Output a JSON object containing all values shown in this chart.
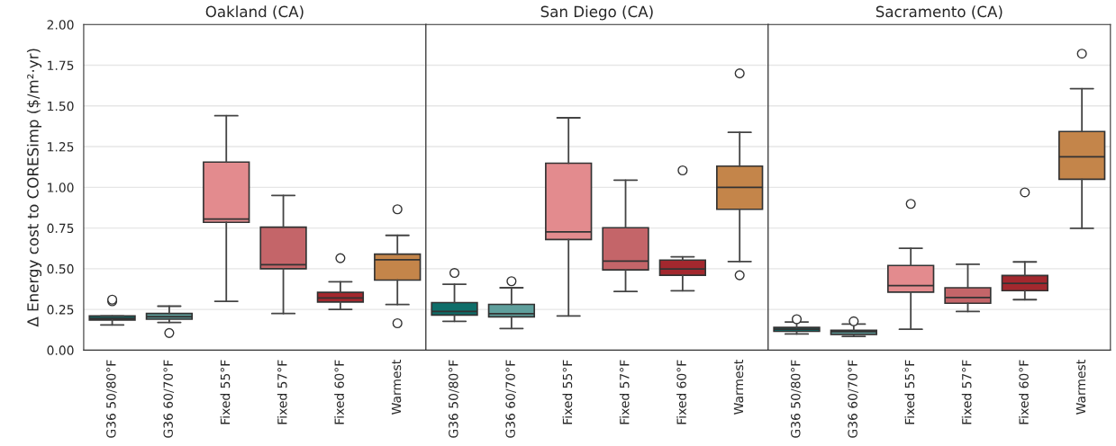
{
  "chart_data": [
    {
      "type": "box",
      "title": "Oakland (CA)",
      "ylabel": "Δ Energy cost to CORESimp ($/m²·yr)",
      "categories": [
        "G36 50/80°F",
        "G36 60/70°F",
        "Fixed 55°F",
        "Fixed 57°F",
        "Fixed 60°F",
        "Warmest"
      ],
      "colors": [
        "#0e6e6a",
        "#5f9f9c",
        "#e38b8e",
        "#c46569",
        "#a3282e",
        "#c4854a"
      ],
      "ylim": [
        0,
        2
      ],
      "yticks": [
        {
          "value": 0,
          "label": "0.00"
        },
        {
          "value": 0.25,
          "label": "0.25"
        },
        {
          "value": 0.5,
          "label": "0.50"
        },
        {
          "value": 0.75,
          "label": "0.75"
        },
        {
          "value": 1,
          "label": "1.00"
        },
        {
          "value": 1.25,
          "label": "1.25"
        },
        {
          "value": 1.5,
          "label": "1.50"
        },
        {
          "value": 1.75,
          "label": "1.75"
        },
        {
          "value": 2,
          "label": "2.00"
        }
      ],
      "grid": "y",
      "boxes": [
        {
          "low": 0.155,
          "q1": 0.185,
          "median": 0.195,
          "q3": 0.21,
          "high": 0.21,
          "outliers": [
            0.3,
            0.31
          ]
        },
        {
          "low": 0.17,
          "q1": 0.19,
          "median": 0.205,
          "q3": 0.225,
          "high": 0.27,
          "outliers": [
            0.105
          ]
        },
        {
          "low": 0.3,
          "q1": 0.785,
          "median": 0.805,
          "q3": 1.155,
          "high": 1.44
        },
        {
          "low": 0.225,
          "q1": 0.5,
          "median": 0.525,
          "q3": 0.755,
          "high": 0.95
        },
        {
          "low": 0.25,
          "q1": 0.295,
          "median": 0.32,
          "q3": 0.355,
          "high": 0.42,
          "outliers": [
            0.565
          ]
        },
        {
          "low": 0.28,
          "q1": 0.43,
          "median": 0.555,
          "q3": 0.59,
          "high": 0.705,
          "outliers": [
            0.865,
            0.165
          ]
        }
      ]
    },
    {
      "type": "box",
      "title": "San Diego (CA)",
      "categories": [
        "G36 50/80°F",
        "G36 60/70°F",
        "Fixed 55°F",
        "Fixed 57°F",
        "Fixed 60°F",
        "Warmest"
      ],
      "colors": [
        "#0e6e6a",
        "#5f9f9c",
        "#e38b8e",
        "#c46569",
        "#a3282e",
        "#c4854a"
      ],
      "ylim": [
        0,
        2
      ],
      "yticks": [
        0,
        0.25,
        0.5,
        0.75,
        1,
        1.25,
        1.5,
        1.75,
        2
      ],
      "grid": "y",
      "tick_labels": "x",
      "boxes": [
        {
          "low": 0.177,
          "q1": 0.215,
          "median": 0.237,
          "q3": 0.292,
          "high": 0.405,
          "outliers": [
            0.474
          ]
        },
        {
          "low": 0.133,
          "q1": 0.204,
          "median": 0.224,
          "q3": 0.281,
          "high": 0.383,
          "outliers": [
            0.423
          ]
        },
        {
          "low": 0.21,
          "q1": 0.679,
          "median": 0.726,
          "q3": 1.148,
          "high": 1.427
        },
        {
          "low": 0.36,
          "q1": 0.493,
          "median": 0.547,
          "q3": 0.752,
          "high": 1.044
        },
        {
          "low": 0.365,
          "q1": 0.46,
          "median": 0.498,
          "q3": 0.553,
          "high": 0.573,
          "outliers": [
            1.104
          ]
        },
        {
          "low": 0.544,
          "q1": 0.865,
          "median": 1.0,
          "q3": 1.13,
          "high": 1.338,
          "outliers": [
            1.7,
            0.46
          ]
        }
      ]
    },
    {
      "type": "box",
      "title": "Sacramento (CA)",
      "categories": [
        "G36 50/80°F",
        "G36 60/70°F",
        "Fixed 55°F",
        "Fixed 57°F",
        "Fixed 60°F",
        "Warmest"
      ],
      "colors": [
        "#0e6e6a",
        "#5f9f9c",
        "#e38b8e",
        "#c46569",
        "#a3282e",
        "#c4854a"
      ],
      "ylim": [
        0,
        2
      ],
      "yticks": [
        0,
        0.25,
        0.5,
        0.75,
        1,
        1.25,
        1.5,
        1.75,
        2
      ],
      "grid": "y",
      "tick_labels": "x",
      "boxes": [
        {
          "low": 0.099,
          "q1": 0.115,
          "median": 0.128,
          "q3": 0.139,
          "high": 0.173,
          "outliers": [
            0.19
          ]
        },
        {
          "low": 0.084,
          "q1": 0.097,
          "median": 0.113,
          "q3": 0.122,
          "high": 0.16,
          "outliers": [
            0.177
          ]
        },
        {
          "low": 0.128,
          "q1": 0.356,
          "median": 0.396,
          "q3": 0.52,
          "high": 0.626,
          "outliers": [
            0.898
          ]
        },
        {
          "low": 0.237,
          "q1": 0.288,
          "median": 0.323,
          "q3": 0.383,
          "high": 0.527
        },
        {
          "low": 0.31,
          "q1": 0.365,
          "median": 0.41,
          "q3": 0.458,
          "high": 0.542,
          "outliers": [
            0.969
          ]
        },
        {
          "low": 0.748,
          "q1": 1.049,
          "median": 1.188,
          "q3": 1.343,
          "high": 1.606,
          "outliers": [
            1.821
          ]
        }
      ]
    }
  ]
}
